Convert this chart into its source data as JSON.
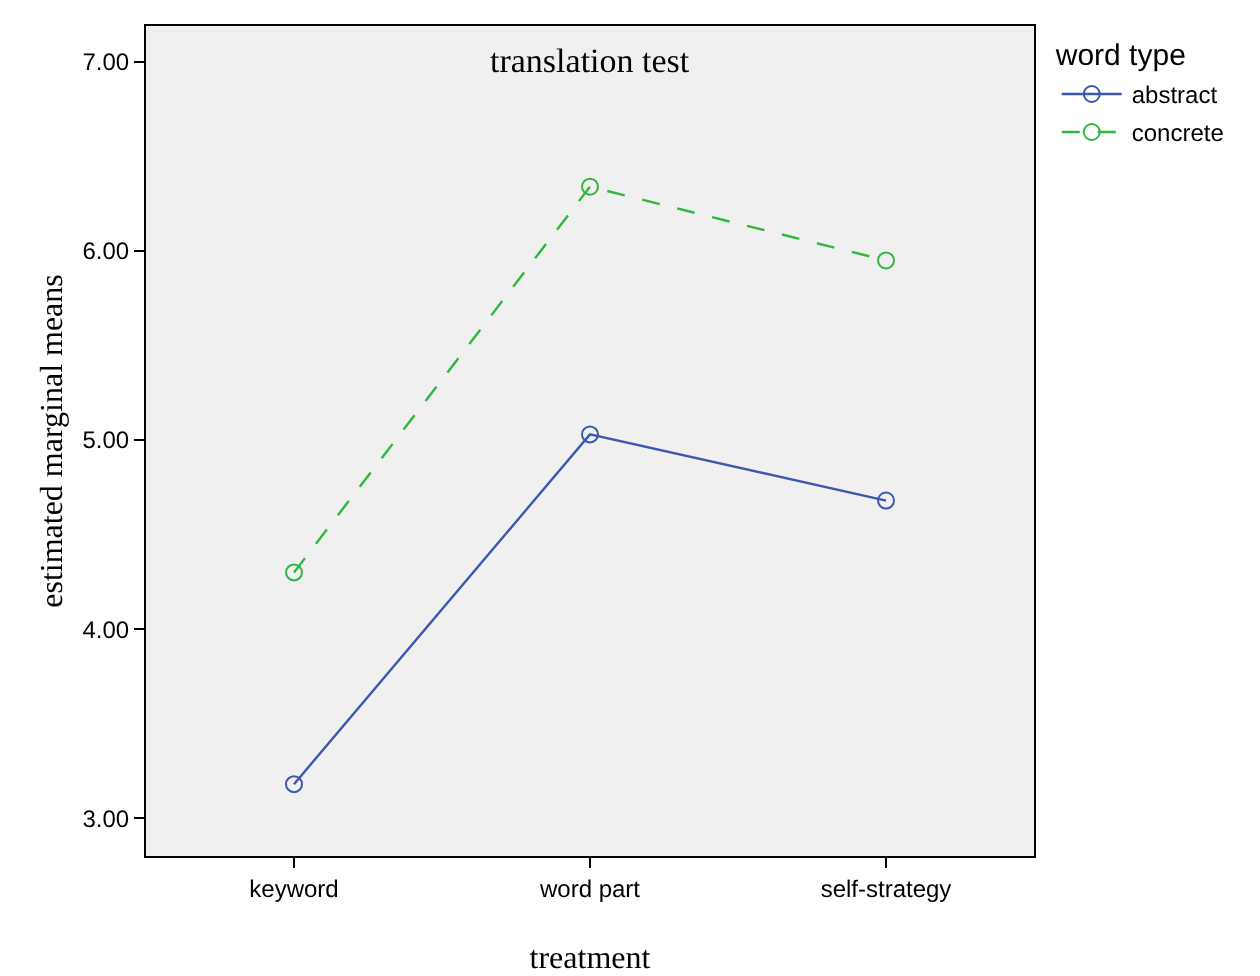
{
  "chart_data": {
    "type": "line",
    "title": "translation test",
    "xlabel": "treatment",
    "ylabel": "estimated marginal means",
    "legend_title": "word type",
    "categories": [
      "keyword",
      "word part",
      "self-strategy"
    ],
    "series": [
      {
        "name": "abstract",
        "color": "#3c57b0",
        "values": [
          3.18,
          5.03,
          4.68
        ],
        "line_style": "solid"
      },
      {
        "name": "concrete",
        "color": "#2eb83c",
        "values": [
          4.3,
          6.34,
          5.95
        ],
        "line_style": "dashed"
      }
    ],
    "ylim": [
      2.8,
      7.19
    ],
    "yticks": [
      {
        "value": 3,
        "label": "3.00"
      },
      {
        "value": 4,
        "label": "4.00"
      },
      {
        "value": 5,
        "label": "5.00"
      },
      {
        "value": 6,
        "label": "6.00"
      },
      {
        "value": 7,
        "label": "7.00"
      }
    ],
    "grid": false,
    "legend": "top right",
    "marker": "circle"
  }
}
